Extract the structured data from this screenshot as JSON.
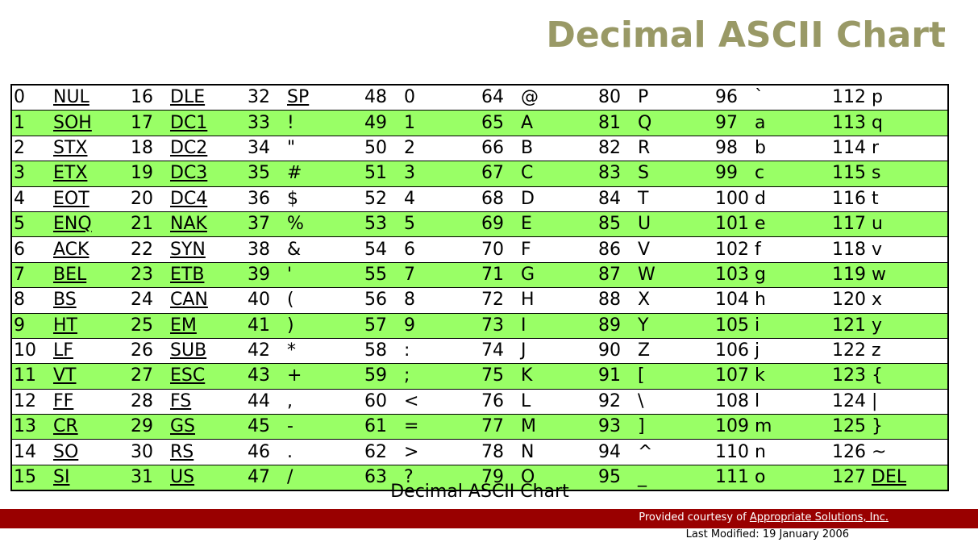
{
  "title": "Decimal ASCII Chart",
  "caption": "Decimal ASCII Chart",
  "footer": {
    "credit_prefix": "Provided courtesy of ",
    "credit_link": "Appropriate Solutions, Inc.",
    "last_modified": "Last Modified: 19 January 2006"
  },
  "colors": {
    "title": "#999966",
    "row_highlight": "#99ff66",
    "footer_bar": "#990000"
  },
  "table": {
    "rows": [
      [
        [
          "0",
          "NUL",
          true
        ],
        [
          "16",
          "DLE",
          true
        ],
        [
          "32",
          "SP",
          true
        ],
        [
          "48",
          "0",
          false
        ],
        [
          "64",
          "@",
          false
        ],
        [
          "80",
          "P",
          false
        ],
        [
          "96",
          "`",
          false
        ],
        [
          "112",
          "p",
          false
        ]
      ],
      [
        [
          "1",
          "SOH",
          true
        ],
        [
          "17",
          "DC1",
          true
        ],
        [
          "33",
          "!",
          false
        ],
        [
          "49",
          "1",
          false
        ],
        [
          "65",
          "A",
          false
        ],
        [
          "81",
          "Q",
          false
        ],
        [
          "97",
          "a",
          false
        ],
        [
          "113",
          "q",
          false
        ]
      ],
      [
        [
          "2",
          "STX",
          true
        ],
        [
          "18",
          "DC2",
          true
        ],
        [
          "34",
          "\"",
          false
        ],
        [
          "50",
          "2",
          false
        ],
        [
          "66",
          "B",
          false
        ],
        [
          "82",
          "R",
          false
        ],
        [
          "98",
          "b",
          false
        ],
        [
          "114",
          "r",
          false
        ]
      ],
      [
        [
          "3",
          "ETX",
          true
        ],
        [
          "19",
          "DC3",
          true
        ],
        [
          "35",
          "#",
          false
        ],
        [
          "51",
          "3",
          false
        ],
        [
          "67",
          "C",
          false
        ],
        [
          "83",
          "S",
          false
        ],
        [
          "99",
          "c",
          false
        ],
        [
          "115",
          "s",
          false
        ]
      ],
      [
        [
          "4",
          "EOT",
          true
        ],
        [
          "20",
          "DC4",
          true
        ],
        [
          "36",
          "$",
          false
        ],
        [
          "52",
          "4",
          false
        ],
        [
          "68",
          "D",
          false
        ],
        [
          "84",
          "T",
          false
        ],
        [
          "100",
          "d",
          false
        ],
        [
          "116",
          "t",
          false
        ]
      ],
      [
        [
          "5",
          "ENQ",
          true
        ],
        [
          "21",
          "NAK",
          true
        ],
        [
          "37",
          "%",
          false
        ],
        [
          "53",
          "5",
          false
        ],
        [
          "69",
          "E",
          false
        ],
        [
          "85",
          "U",
          false
        ],
        [
          "101",
          "e",
          false
        ],
        [
          "117",
          "u",
          false
        ]
      ],
      [
        [
          "6",
          "ACK",
          true
        ],
        [
          "22",
          "SYN",
          true
        ],
        [
          "38",
          "&",
          false
        ],
        [
          "54",
          "6",
          false
        ],
        [
          "70",
          "F",
          false
        ],
        [
          "86",
          "V",
          false
        ],
        [
          "102",
          "f",
          false
        ],
        [
          "118",
          "v",
          false
        ]
      ],
      [
        [
          "7",
          "BEL",
          true
        ],
        [
          "23",
          "ETB",
          true
        ],
        [
          "39",
          "'",
          false
        ],
        [
          "55",
          "7",
          false
        ],
        [
          "71",
          "G",
          false
        ],
        [
          "87",
          "W",
          false
        ],
        [
          "103",
          "g",
          false
        ],
        [
          "119",
          "w",
          false
        ]
      ],
      [
        [
          "8",
          "BS",
          true
        ],
        [
          "24",
          "CAN",
          true
        ],
        [
          "40",
          "(",
          false
        ],
        [
          "56",
          "8",
          false
        ],
        [
          "72",
          "H",
          false
        ],
        [
          "88",
          "X",
          false
        ],
        [
          "104",
          "h",
          false
        ],
        [
          "120",
          "x",
          false
        ]
      ],
      [
        [
          "9",
          "HT",
          true
        ],
        [
          "25",
          "EM",
          true
        ],
        [
          "41",
          ")",
          false
        ],
        [
          "57",
          "9",
          false
        ],
        [
          "73",
          "I",
          false
        ],
        [
          "89",
          "Y",
          false
        ],
        [
          "105",
          "i",
          false
        ],
        [
          "121",
          "y",
          false
        ]
      ],
      [
        [
          "10",
          "LF",
          true
        ],
        [
          "26",
          "SUB",
          true
        ],
        [
          "42",
          "*",
          false
        ],
        [
          "58",
          ":",
          false
        ],
        [
          "74",
          "J",
          false
        ],
        [
          "90",
          "Z",
          false
        ],
        [
          "106",
          "j",
          false
        ],
        [
          "122",
          "z",
          false
        ]
      ],
      [
        [
          "11",
          "VT",
          true
        ],
        [
          "27",
          "ESC",
          true
        ],
        [
          "43",
          "+",
          false
        ],
        [
          "59",
          ";",
          false
        ],
        [
          "75",
          "K",
          false
        ],
        [
          "91",
          "[",
          false
        ],
        [
          "107",
          "k",
          false
        ],
        [
          "123",
          "{",
          false
        ]
      ],
      [
        [
          "12",
          "FF",
          true
        ],
        [
          "28",
          "FS",
          true
        ],
        [
          "44",
          ",",
          false
        ],
        [
          "60",
          "<",
          false
        ],
        [
          "76",
          "L",
          false
        ],
        [
          "92",
          "\\",
          false
        ],
        [
          "108",
          "l",
          false
        ],
        [
          "124",
          "|",
          false
        ]
      ],
      [
        [
          "13",
          "CR",
          true
        ],
        [
          "29",
          "GS",
          true
        ],
        [
          "45",
          "-",
          false
        ],
        [
          "61",
          "=",
          false
        ],
        [
          "77",
          "M",
          false
        ],
        [
          "93",
          "]",
          false
        ],
        [
          "109",
          "m",
          false
        ],
        [
          "125",
          "}",
          false
        ]
      ],
      [
        [
          "14",
          "SO",
          true
        ],
        [
          "30",
          "RS",
          true
        ],
        [
          "46",
          ".",
          false
        ],
        [
          "62",
          ">",
          false
        ],
        [
          "78",
          "N",
          false
        ],
        [
          "94",
          "^",
          false
        ],
        [
          "110",
          "n",
          false
        ],
        [
          "126",
          "~",
          false
        ]
      ],
      [
        [
          "15",
          "SI",
          true
        ],
        [
          "31",
          "US",
          true
        ],
        [
          "47",
          "/",
          false
        ],
        [
          "63",
          "?",
          false
        ],
        [
          "79",
          "O",
          false
        ],
        [
          "95",
          "_",
          false
        ],
        [
          "111",
          "o",
          false
        ],
        [
          "127",
          "DEL",
          true
        ]
      ]
    ]
  }
}
